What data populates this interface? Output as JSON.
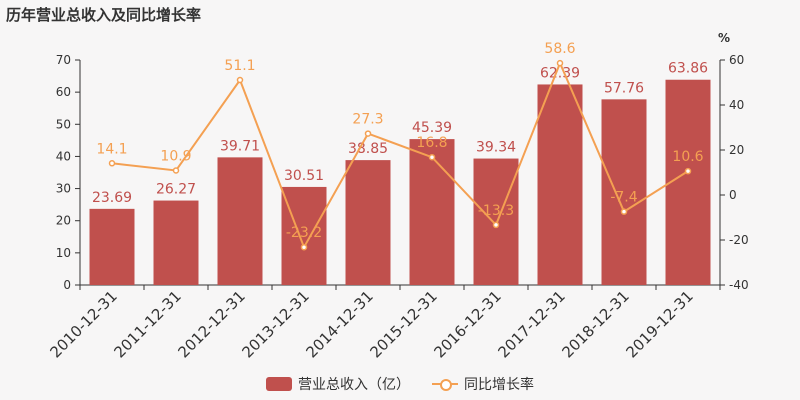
{
  "title": "历年营业总收入及同比增长率",
  "colors": {
    "bar": "#c0504d",
    "line": "#f4a052",
    "bar_label": "#c0504d",
    "line_label": "#f4a052",
    "axis": "#333333"
  },
  "chart_data": {
    "type": "bar",
    "categories": [
      "2010-12-31",
      "2011-12-31",
      "2012-12-31",
      "2013-12-31",
      "2014-12-31",
      "2015-12-31",
      "2016-12-31",
      "2017-12-31",
      "2018-12-31",
      "2019-12-31"
    ],
    "series": [
      {
        "name": "营业总收入（亿）",
        "type": "bar",
        "axis": "left",
        "values": [
          23.69,
          26.27,
          39.71,
          30.51,
          38.85,
          45.39,
          39.34,
          62.39,
          57.76,
          63.86
        ],
        "labels": [
          "23.69",
          "26.27",
          "39.71",
          "30.51",
          "38.85",
          "45.39",
          "39.34",
          "62.39",
          "57.76",
          "63.86"
        ]
      },
      {
        "name": "同比增长率",
        "type": "line",
        "axis": "right",
        "values": [
          14.1,
          10.9,
          51.1,
          -23.2,
          27.3,
          16.8,
          -13.3,
          58.6,
          -7.4,
          10.6
        ],
        "labels": [
          "14.1",
          "10.9",
          "51.1",
          "-23.2",
          "27.3",
          "16.8",
          "-13.3",
          "58.6",
          "-7.4",
          "10.6"
        ]
      }
    ],
    "y_left": {
      "min": 0,
      "max": 70,
      "ticks": [
        0,
        10,
        20,
        30,
        40,
        50,
        60,
        70
      ],
      "tick_labels": [
        "0",
        "10",
        "20",
        "30",
        "40",
        "50",
        "60",
        "70"
      ]
    },
    "y_right": {
      "min": -40,
      "max": 60,
      "ticks": [
        -40,
        -20,
        0,
        20,
        40,
        60
      ],
      "tick_labels": [
        "-40",
        "-20",
        "0",
        "20",
        "40",
        "60"
      ],
      "unit": "%"
    },
    "legend_position": "bottom",
    "grid": false
  }
}
